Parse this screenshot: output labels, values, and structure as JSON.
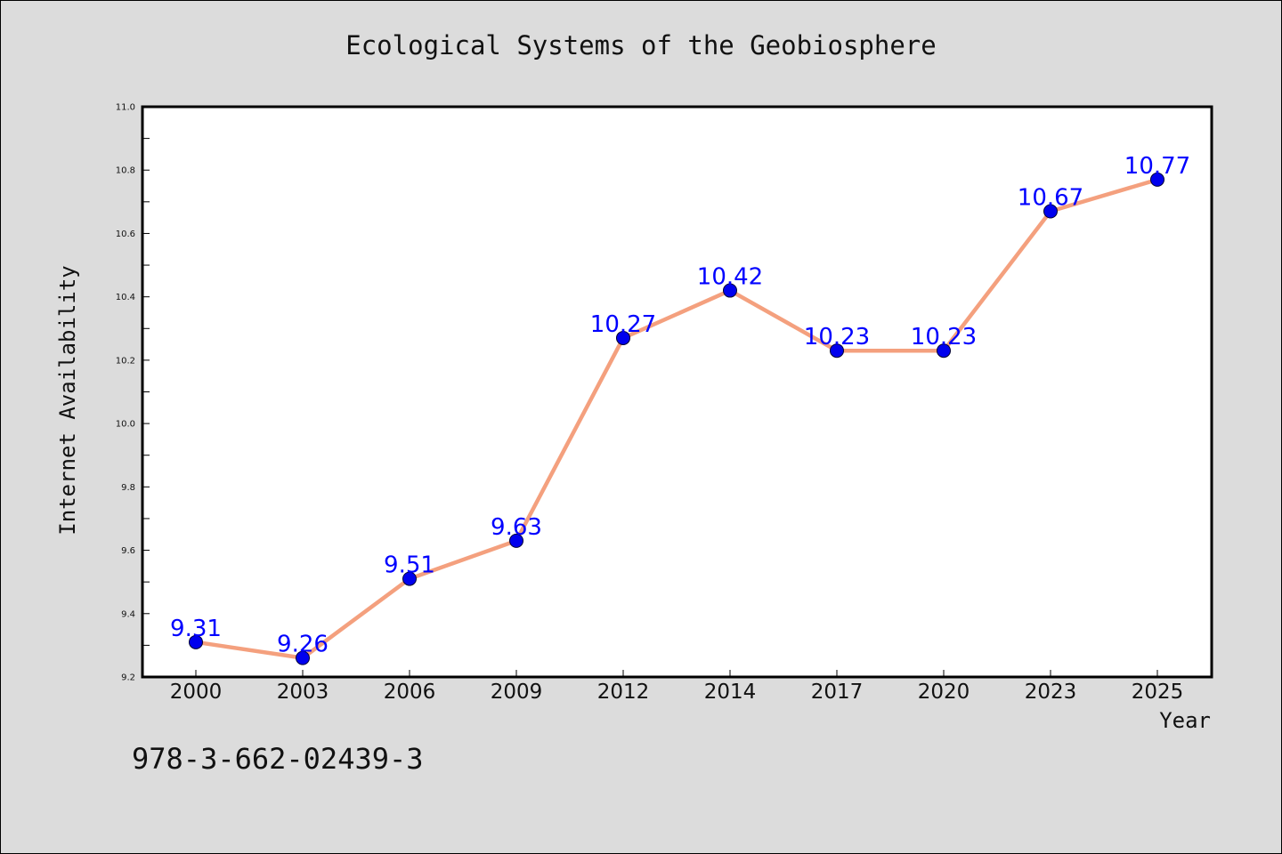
{
  "page": {
    "isbn": "978-3-662-02439-3"
  },
  "chart_data": {
    "type": "line",
    "title": "Ecological Systems of the Geobiosphere",
    "xlabel": "Year",
    "ylabel": "Internet Availability",
    "categories": [
      "2000",
      "2003",
      "2006",
      "2009",
      "2012",
      "2014",
      "2017",
      "2020",
      "2023",
      "2025"
    ],
    "series": [
      {
        "values": [
          9.31,
          9.26,
          9.51,
          9.63,
          10.27,
          10.42,
          10.23,
          10.23,
          10.67,
          10.77
        ]
      }
    ],
    "data_labels": [
      "9.31",
      "9.26",
      "9.51",
      "9.63",
      "10.27",
      "10.42",
      "10.23",
      "10.23",
      "10.67",
      "10.77"
    ],
    "yticks": [
      "9.2",
      "9.4",
      "9.6",
      "9.8",
      "10.0",
      "10.2",
      "10.4",
      "10.6",
      "10.8",
      "11.0"
    ],
    "ylim": [
      9.2,
      11.0
    ],
    "grid": false,
    "colors": {
      "line": "#f4a07e",
      "marker": "#0000ee",
      "label": "#0000ff",
      "plot_background": "#ffffff",
      "figure_background": "#dcdcdc"
    }
  }
}
